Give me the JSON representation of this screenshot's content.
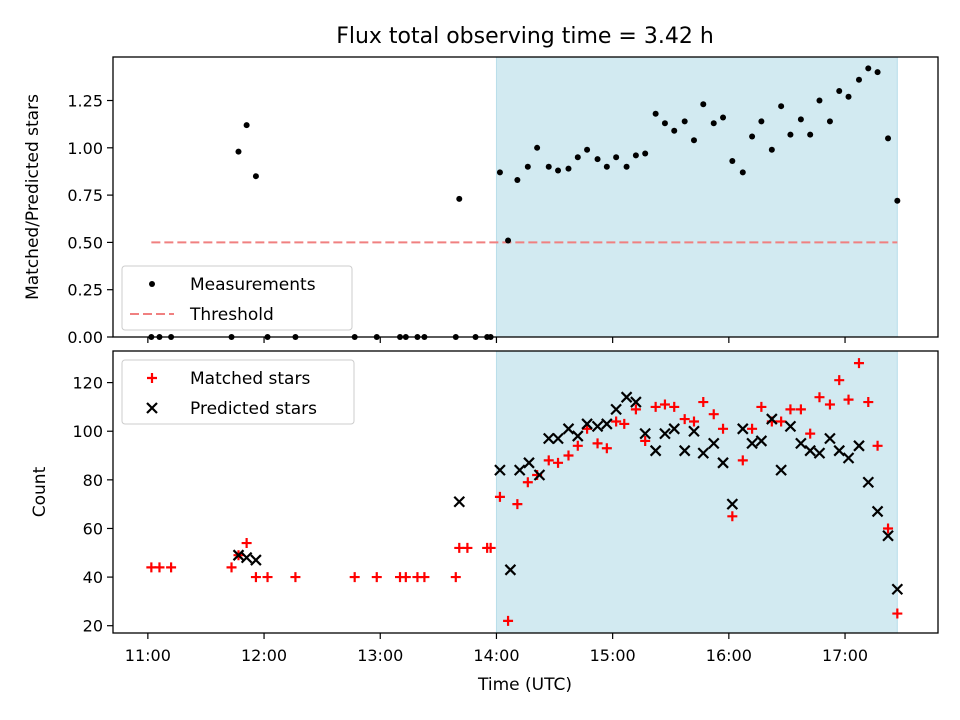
{
  "chart_data": [
    {
      "type": "scatter",
      "title": "Flux total observing time = 3.42 h",
      "xlabel": "",
      "ylabel": "Matched/Predicted stars",
      "xlim": [
        10.7,
        17.8
      ],
      "ylim": [
        0.0,
        1.48
      ],
      "yticks": [
        0.0,
        0.25,
        0.5,
        0.75,
        1.0,
        1.25
      ],
      "ytick_labels": [
        "0.00",
        "0.25",
        "0.50",
        "0.75",
        "1.00",
        "1.25"
      ],
      "xticks": [
        11,
        12,
        13,
        14,
        15,
        16,
        17
      ],
      "show_xtick_labels": false,
      "grid": false,
      "legend_position": "lower-left",
      "shaded_region": {
        "x_start": 14.0,
        "x_end": 17.45,
        "color": "#add8e6"
      },
      "threshold": {
        "value": 0.5,
        "x_start": 11.03,
        "x_end": 17.45,
        "color": "#f08080",
        "style": "dashed"
      },
      "series": [
        {
          "name": "Measurements",
          "color": "#000000",
          "marker": "dot",
          "x": [
            11.03,
            11.1,
            11.2,
            11.72,
            11.78,
            11.85,
            11.93,
            12.03,
            12.27,
            12.78,
            12.97,
            13.17,
            13.22,
            13.32,
            13.38,
            13.65,
            13.68,
            13.82,
            13.92,
            13.95,
            14.03,
            14.1,
            14.18,
            14.27,
            14.35,
            14.45,
            14.53,
            14.62,
            14.7,
            14.78,
            14.87,
            14.95,
            15.03,
            15.12,
            15.2,
            15.28,
            15.37,
            15.45,
            15.53,
            15.62,
            15.7,
            15.78,
            15.87,
            15.95,
            16.03,
            16.12,
            16.2,
            16.28,
            16.37,
            16.45,
            16.53,
            16.62,
            16.7,
            16.78,
            16.87,
            16.95,
            17.03,
            17.12,
            17.2,
            17.28,
            17.37,
            17.45
          ],
          "y": [
            0.0,
            0.0,
            0.0,
            0.0,
            0.98,
            1.12,
            0.85,
            0.0,
            0.0,
            0.0,
            0.0,
            0.0,
            0.0,
            0.0,
            0.0,
            0.0,
            0.73,
            0.0,
            0.0,
            0.0,
            0.87,
            0.51,
            0.83,
            0.9,
            1.0,
            0.9,
            0.88,
            0.89,
            0.95,
            0.99,
            0.94,
            0.9,
            0.95,
            0.9,
            0.96,
            0.97,
            1.18,
            1.13,
            1.09,
            1.14,
            1.04,
            1.23,
            1.13,
            1.16,
            0.93,
            0.87,
            1.06,
            1.14,
            0.99,
            1.22,
            1.07,
            1.15,
            1.07,
            1.25,
            1.14,
            1.3,
            1.27,
            1.36,
            1.42,
            1.4,
            1.05,
            0.72
          ]
        },
        {
          "name": "Threshold",
          "color": "#f08080",
          "marker": "dashed-line"
        }
      ]
    },
    {
      "type": "scatter",
      "title": "",
      "xlabel": "Time (UTC)",
      "ylabel": "Count",
      "xlim": [
        10.7,
        17.8
      ],
      "ylim": [
        17,
        133
      ],
      "yticks": [
        20,
        40,
        60,
        80,
        100,
        120
      ],
      "ytick_labels": [
        "20",
        "40",
        "60",
        "80",
        "100",
        "120"
      ],
      "xticks": [
        11,
        12,
        13,
        14,
        15,
        16,
        17
      ],
      "xtick_labels": [
        "11:00",
        "12:00",
        "13:00",
        "14:00",
        "15:00",
        "16:00",
        "17:00"
      ],
      "grid": false,
      "legend_position": "upper-left",
      "shaded_region": {
        "x_start": 14.0,
        "x_end": 17.45,
        "color": "#add8e6"
      },
      "series": [
        {
          "name": "Matched stars",
          "color": "#ff0000",
          "marker": "plus",
          "x": [
            11.03,
            11.1,
            11.2,
            11.72,
            11.78,
            11.85,
            11.93,
            12.03,
            12.27,
            12.78,
            12.97,
            13.17,
            13.22,
            13.32,
            13.38,
            13.65,
            13.68,
            13.75,
            13.92,
            13.95,
            14.03,
            14.1,
            14.18,
            14.27,
            14.35,
            14.45,
            14.53,
            14.62,
            14.7,
            14.78,
            14.87,
            14.95,
            15.03,
            15.1,
            15.2,
            15.28,
            15.37,
            15.45,
            15.53,
            15.62,
            15.7,
            15.78,
            15.87,
            15.95,
            16.03,
            16.12,
            16.2,
            16.28,
            16.37,
            16.45,
            16.53,
            16.62,
            16.7,
            16.78,
            16.87,
            16.95,
            17.03,
            17.12,
            17.2,
            17.28,
            17.37,
            17.45
          ],
          "y": [
            44,
            44,
            44,
            44,
            49,
            54,
            40,
            40,
            40,
            40,
            40,
            40,
            40,
            40,
            40,
            40,
            52,
            52,
            52,
            52,
            73,
            22,
            70,
            79,
            82,
            88,
            87,
            90,
            94,
            101,
            95,
            93,
            104,
            103,
            109,
            96,
            110,
            111,
            110,
            105,
            104,
            112,
            107,
            101,
            65,
            88,
            101,
            110,
            104,
            104,
            109,
            109,
            99,
            114,
            111,
            121,
            113,
            128,
            112,
            94,
            60,
            25
          ]
        },
        {
          "name": "Predicted stars",
          "color": "#000000",
          "marker": "x",
          "x": [
            11.78,
            11.85,
            11.93,
            13.68,
            14.03,
            14.12,
            14.2,
            14.28,
            14.37,
            14.45,
            14.53,
            14.62,
            14.7,
            14.78,
            14.87,
            14.95,
            15.03,
            15.12,
            15.2,
            15.28,
            15.37,
            15.45,
            15.53,
            15.62,
            15.7,
            15.78,
            15.87,
            15.95,
            16.03,
            16.12,
            16.2,
            16.28,
            16.37,
            16.45,
            16.53,
            16.62,
            16.7,
            16.78,
            16.87,
            16.95,
            17.03,
            17.12,
            17.2,
            17.28,
            17.37,
            17.45
          ],
          "y": [
            49,
            48,
            47,
            71,
            84,
            43,
            84,
            87,
            82,
            97,
            97,
            101,
            98,
            103,
            102,
            103,
            109,
            114,
            112,
            99,
            92,
            99,
            101,
            92,
            100,
            91,
            95,
            87,
            70,
            101,
            95,
            96,
            105,
            84,
            102,
            95,
            92,
            91,
            97,
            92,
            89,
            94,
            79,
            67,
            57,
            35
          ]
        }
      ]
    }
  ]
}
